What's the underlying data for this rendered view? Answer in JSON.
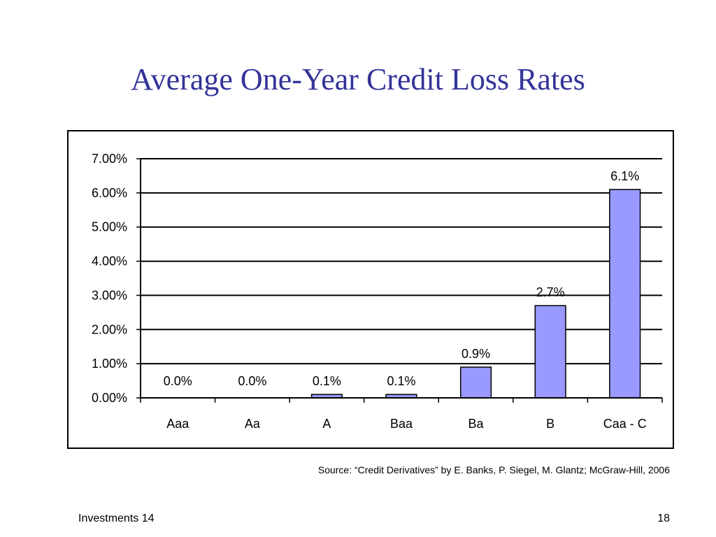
{
  "slide": {
    "title": "Average One-Year Credit Loss Rates",
    "source": "Source: “Credit Derivatives” by E. Banks, P. Siegel, M. Glantz; McGraw-Hill, 2006",
    "footer_left": "Investments 14",
    "page_number": "18"
  },
  "chart_data": {
    "type": "bar",
    "title": "",
    "xlabel": "",
    "ylabel": "",
    "categories": [
      "Aaa",
      "Aa",
      "A",
      "Baa",
      "Ba",
      "B",
      "Caa - C"
    ],
    "values": [
      0.0,
      0.0,
      0.1,
      0.1,
      0.9,
      2.7,
      6.1
    ],
    "data_labels": [
      "0.0%",
      "0.0%",
      "0.1%",
      "0.1%",
      "0.9%",
      "2.7%",
      "6.1%"
    ],
    "ylim": [
      0,
      7
    ],
    "y_ticks": [
      0,
      1,
      2,
      3,
      4,
      5,
      6,
      7
    ],
    "y_tick_labels": [
      "0.00%",
      "1.00%",
      "2.00%",
      "3.00%",
      "4.00%",
      "5.00%",
      "6.00%",
      "7.00%"
    ],
    "grid": true,
    "legend": false,
    "colors": {
      "bar_fill": "#9999ff",
      "bar_stroke": "#000000",
      "gridline": "#000000",
      "frame": "#000000"
    }
  }
}
